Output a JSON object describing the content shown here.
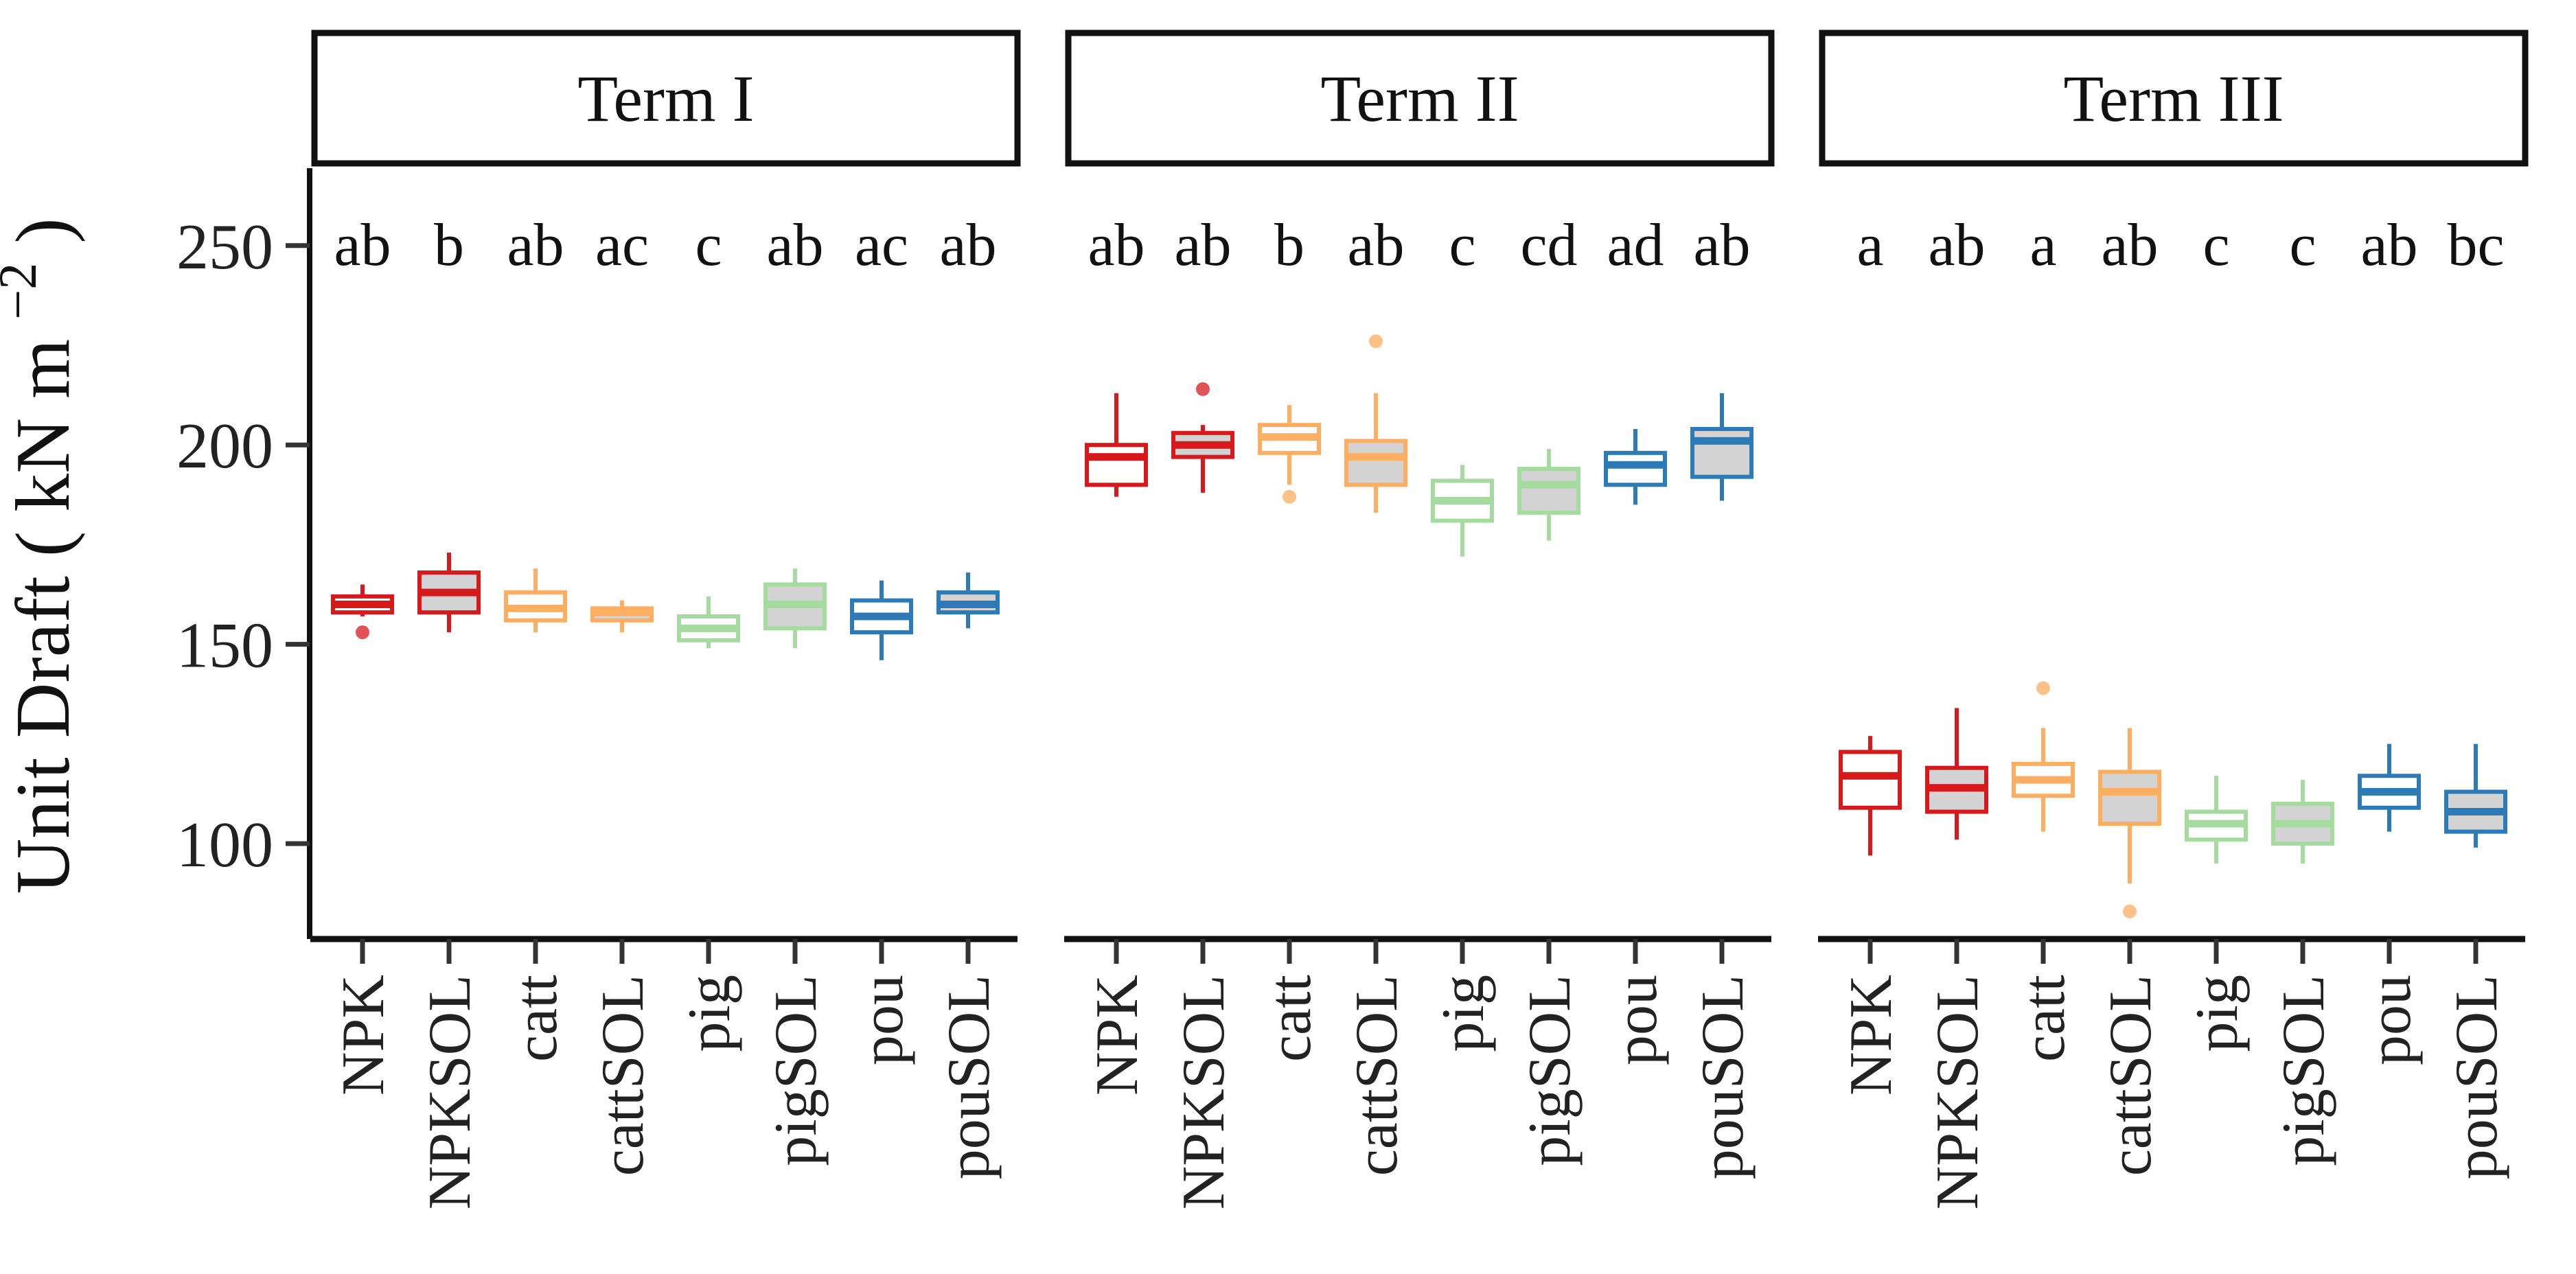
{
  "chart_data": {
    "type": "boxplot",
    "ylabel": "Unit Draft ( kN  m",
    "ylabel_superscript": "−2",
    "ylabel_close": ")",
    "ylim": [
      75,
      270
    ],
    "yticks": [
      100,
      150,
      200,
      250
    ],
    "categories": [
      "NPK",
      "NPKSOL",
      "catt",
      "cattSOL",
      "pig",
      "pigSOL",
      "pou",
      "pouSOL"
    ],
    "colors": [
      "#d7191c",
      "#d7191c",
      "#fdae61",
      "#fdae61",
      "#a6dba0",
      "#a6dba0",
      "#2c7bb6",
      "#2c7bb6"
    ],
    "sol_fill": "#d3d3d3",
    "facets": [
      {
        "title": "Term I",
        "letters": [
          "ab",
          "b",
          "ab",
          "ac",
          "c",
          "ab",
          "ac",
          "ab"
        ],
        "boxes": [
          {
            "lw": 157,
            "q1": 158,
            "med": 160,
            "q3": 162,
            "uw": 165,
            "outliers": [
              153
            ]
          },
          {
            "lw": 153,
            "q1": 158,
            "med": 163,
            "q3": 168,
            "uw": 173,
            "outliers": []
          },
          {
            "lw": 153,
            "q1": 156,
            "med": 159,
            "q3": 163,
            "uw": 169,
            "outliers": []
          },
          {
            "lw": 153,
            "q1": 156,
            "med": 158,
            "q3": 159,
            "uw": 161,
            "outliers": []
          },
          {
            "lw": 149,
            "q1": 151,
            "med": 154,
            "q3": 157,
            "uw": 162,
            "outliers": []
          },
          {
            "lw": 149,
            "q1": 154,
            "med": 160,
            "q3": 165,
            "uw": 169,
            "outliers": []
          },
          {
            "lw": 146,
            "q1": 153,
            "med": 157,
            "q3": 161,
            "uw": 166,
            "outliers": []
          },
          {
            "lw": 154,
            "q1": 158,
            "med": 160,
            "q3": 163,
            "uw": 168,
            "outliers": []
          }
        ]
      },
      {
        "title": "Term II",
        "letters": [
          "ab",
          "ab",
          "b",
          "ab",
          "c",
          "cd",
          "ad",
          "ab"
        ],
        "boxes": [
          {
            "lw": 187,
            "q1": 190,
            "med": 197,
            "q3": 200,
            "uw": 213,
            "outliers": []
          },
          {
            "lw": 188,
            "q1": 197,
            "med": 200,
            "q3": 203,
            "uw": 205,
            "outliers": [
              214
            ]
          },
          {
            "lw": 190,
            "q1": 198,
            "med": 202,
            "q3": 205,
            "uw": 210,
            "outliers": [
              187
            ]
          },
          {
            "lw": 183,
            "q1": 190,
            "med": 197,
            "q3": 201,
            "uw": 213,
            "outliers": [
              226
            ]
          },
          {
            "lw": 172,
            "q1": 181,
            "med": 186,
            "q3": 191,
            "uw": 195,
            "outliers": []
          },
          {
            "lw": 176,
            "q1": 183,
            "med": 190,
            "q3": 194,
            "uw": 199,
            "outliers": []
          },
          {
            "lw": 185,
            "q1": 190,
            "med": 195,
            "q3": 198,
            "uw": 204,
            "outliers": []
          },
          {
            "lw": 186,
            "q1": 192,
            "med": 201,
            "q3": 204,
            "uw": 213,
            "outliers": []
          }
        ]
      },
      {
        "title": "Term III",
        "letters": [
          "a",
          "ab",
          "a",
          "ab",
          "c",
          "c",
          "ab",
          "bc"
        ],
        "boxes": [
          {
            "lw": 97,
            "q1": 109,
            "med": 117,
            "q3": 123,
            "uw": 127,
            "outliers": []
          },
          {
            "lw": 101,
            "q1": 108,
            "med": 114,
            "q3": 119,
            "uw": 134,
            "outliers": []
          },
          {
            "lw": 103,
            "q1": 112,
            "med": 116,
            "q3": 120,
            "uw": 129,
            "outliers": [
              139
            ]
          },
          {
            "lw": 90,
            "q1": 105,
            "med": 113,
            "q3": 118,
            "uw": 129,
            "outliers": [
              83
            ]
          },
          {
            "lw": 95,
            "q1": 101,
            "med": 105,
            "q3": 108,
            "uw": 117,
            "outliers": []
          },
          {
            "lw": 95,
            "q1": 100,
            "med": 105,
            "q3": 110,
            "uw": 116,
            "outliers": []
          },
          {
            "lw": 103,
            "q1": 109,
            "med": 113,
            "q3": 117,
            "uw": 125,
            "outliers": []
          },
          {
            "lw": 99,
            "q1": 103,
            "med": 108,
            "q3": 113,
            "uw": 125,
            "outliers": []
          }
        ]
      }
    ]
  }
}
